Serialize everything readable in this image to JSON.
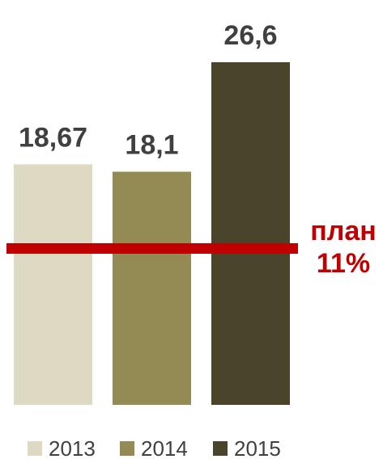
{
  "chart_data": {
    "type": "bar",
    "categories": [
      "2013",
      "2014",
      "2015"
    ],
    "values": [
      18.67,
      18.1,
      26.6
    ],
    "value_labels": [
      "18,67",
      "18,1",
      "26,6"
    ],
    "colors": [
      "#ddd9c3",
      "#948a54",
      "#4a452a"
    ],
    "title": "",
    "xlabel": "",
    "ylabel": "",
    "ylim": [
      0,
      30
    ],
    "grid": false,
    "legend": "bottom",
    "plan_line": {
      "label_line1": "план",
      "label_line2": "11%",
      "color": "#c00000"
    }
  }
}
